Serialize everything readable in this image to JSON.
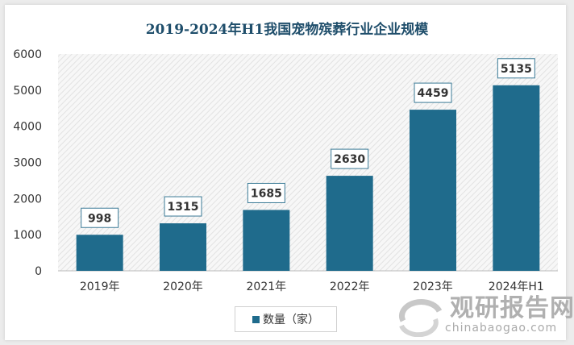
{
  "chart_data": {
    "type": "bar",
    "title": "2019-2024年H1我国宠物殡葬行业企业规模",
    "categories": [
      "2019年",
      "2020年",
      "2021年",
      "2022年",
      "2023年",
      "2024年H1"
    ],
    "series": [
      {
        "name": "数量（家）",
        "values": [
          998,
          1315,
          1685,
          2630,
          4459,
          5135
        ]
      }
    ],
    "ylim": [
      0,
      6000
    ],
    "yticks": [
      0,
      1000,
      2000,
      3000,
      4000,
      5000,
      6000
    ],
    "grid": false,
    "legend": "bottom",
    "bar_color": "#1f6b8c"
  },
  "watermark": {
    "name": "观研报告网",
    "url": "chinabaogao.com"
  }
}
